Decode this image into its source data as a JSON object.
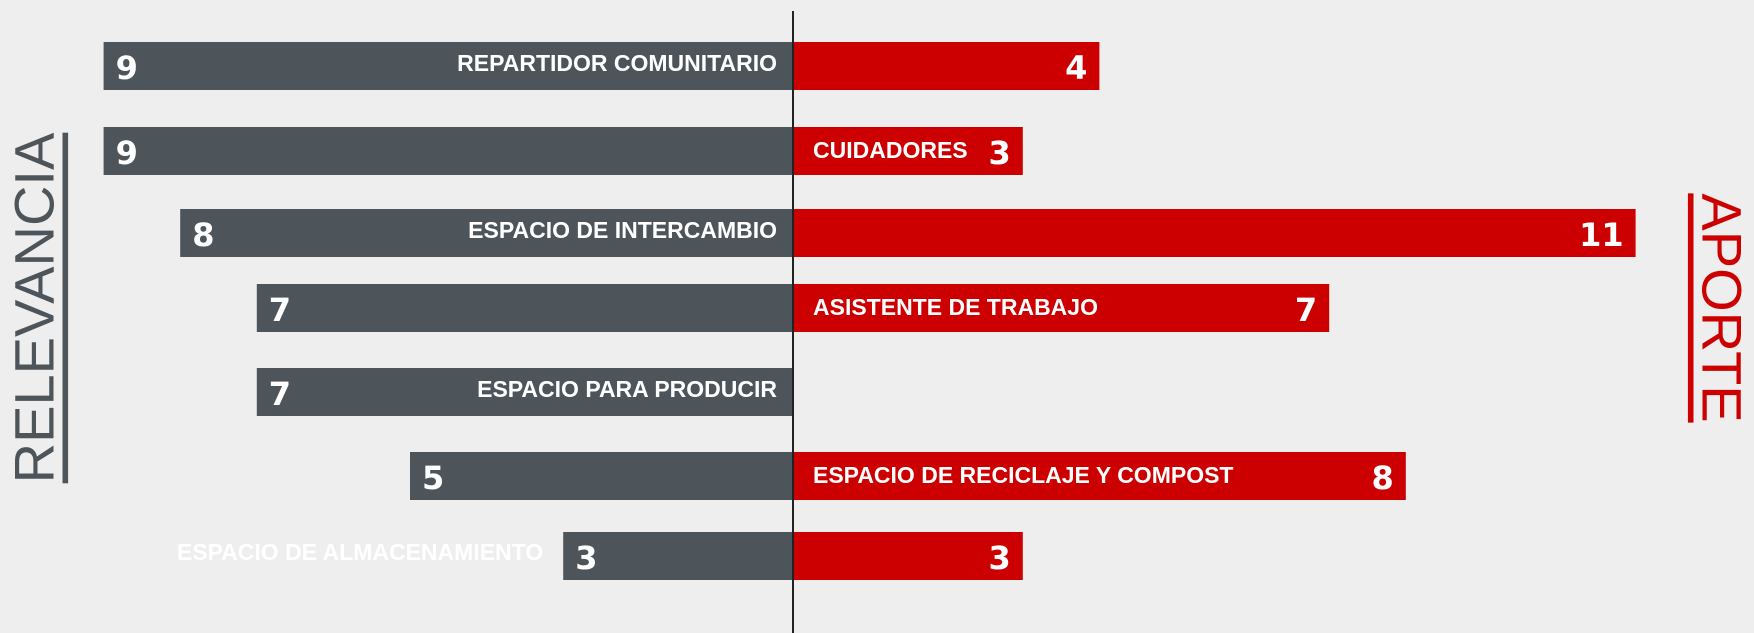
{
  "chart_data": {
    "type": "diverging-bar",
    "categories": [
      "REPARTIDOR COMUNITARIO",
      "CUIDADORES",
      "ESPACIO DE INTERCAMBIO",
      "ASISTENTE DE TRABAJO",
      "ESPACIO PARA PRODUCIR",
      "ESPACIO DE RECICLAJE Y COMPOST",
      "ESPACIO DE ALMACENAMIENTO"
    ],
    "series": [
      {
        "name": "RELEVANCIA",
        "color": "#4d555b",
        "values": [
          9,
          9,
          8,
          7,
          7,
          5,
          3
        ]
      },
      {
        "name": "APORTE",
        "color": "#cc0000",
        "values": [
          4,
          3,
          11,
          7,
          null,
          8,
          3
        ]
      }
    ]
  }
}
